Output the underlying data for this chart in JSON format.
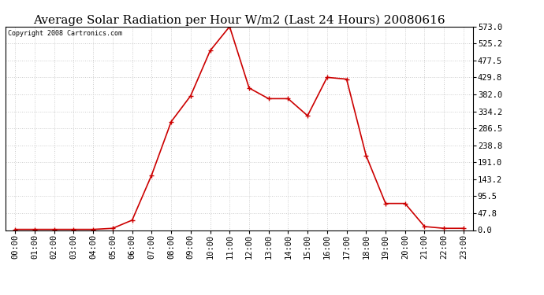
{
  "title": "Average Solar Radiation per Hour W/m2 (Last 24 Hours) 20080616",
  "copyright": "Copyright 2008 Cartronics.com",
  "hours": [
    "00:00",
    "01:00",
    "02:00",
    "03:00",
    "04:00",
    "05:00",
    "06:00",
    "07:00",
    "08:00",
    "09:00",
    "10:00",
    "11:00",
    "12:00",
    "13:00",
    "14:00",
    "15:00",
    "16:00",
    "17:00",
    "18:00",
    "19:00",
    "20:00",
    "21:00",
    "22:00",
    "23:00"
  ],
  "values": [
    2,
    2,
    2,
    2,
    2,
    5,
    28,
    155,
    305,
    378,
    505,
    573,
    400,
    370,
    370,
    322,
    430,
    425,
    210,
    75,
    75,
    10,
    5,
    5
  ],
  "line_color": "#cc0000",
  "marker": "+",
  "marker_size": 5,
  "marker_color": "#cc0000",
  "background_color": "#ffffff",
  "grid_color": "#cccccc",
  "title_fontsize": 11,
  "tick_fontsize": 7.5,
  "copyright_fontsize": 6,
  "ylim": [
    0,
    573.0
  ],
  "yticks": [
    0.0,
    47.8,
    95.5,
    143.2,
    191.0,
    238.8,
    286.5,
    334.2,
    382.0,
    429.8,
    477.5,
    525.2,
    573.0
  ]
}
